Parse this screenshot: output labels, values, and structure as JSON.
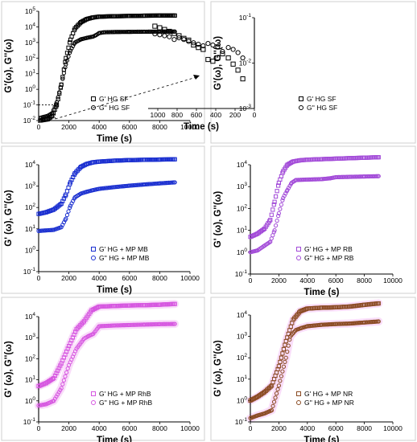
{
  "chart_data": [
    {
      "id": "sf",
      "type": "scatter",
      "xlabel": "Time (s)",
      "ylabel": "G'(ω), G''(ω)",
      "xticks": [
        "0",
        "2000",
        "4000",
        "6000",
        "8000",
        "10000"
      ],
      "xlim": [
        0,
        10000
      ],
      "yscale": "log",
      "ylim_exp": [
        -2,
        5
      ],
      "series": [
        {
          "name": "G' HG SF",
          "marker": "square",
          "color": "#000000",
          "x": [
            100,
            600,
            900,
            1200,
            1500,
            1800,
            2100,
            2400,
            2800,
            3200,
            3600,
            4000,
            5000,
            6000,
            7000,
            8000,
            9000
          ],
          "y": [
            0.01,
            0.012,
            0.02,
            0.1,
            2,
            100,
            1500,
            8000,
            20000,
            32000,
            40000,
            45000,
            48000,
            50000,
            52000,
            53000,
            53000
          ]
        },
        {
          "name": "G'' HG SF",
          "marker": "circle",
          "color": "#000000",
          "x": [
            100,
            600,
            900,
            1200,
            1500,
            1800,
            2100,
            2400,
            2800,
            3200,
            3600,
            3800,
            4000,
            4300,
            5000,
            6000,
            7000,
            8000,
            9000
          ],
          "y": [
            0.015,
            0.02,
            0.03,
            0.15,
            2,
            40,
            300,
            1000,
            1600,
            2000,
            2400,
            3000,
            4000,
            4500,
            4700,
            4800,
            4900,
            5000,
            5000
          ]
        }
      ]
    },
    {
      "id": "sf-zoom",
      "type": "scatter",
      "xlabel": "Time (s)",
      "ylabel": "G'(ω), G''(ω)",
      "xticks": [
        "0",
        "200",
        "400",
        "600",
        "800",
        "1000"
      ],
      "xlim": [
        0,
        1100
      ],
      "yscale": "log",
      "ylim_exp": [
        -3,
        -1
      ],
      "series": [
        {
          "name": "G' HG SF",
          "marker": "square",
          "color": "#000000",
          "x": [
            120,
            170,
            220,
            270,
            330,
            380,
            430,
            480,
            530,
            580,
            630,
            680,
            730,
            780,
            830,
            880,
            930,
            980,
            1030
          ],
          "y": [
            0.0045,
            0.007,
            0.0095,
            0.013,
            0.016,
            0.013,
            0.011,
            0.012,
            0.02,
            0.022,
            0.025,
            0.032,
            0.035,
            0.04,
            0.045,
            0.05,
            0.055,
            0.06,
            0.065
          ]
        },
        {
          "name": "G'' HG SF",
          "marker": "circle",
          "color": "#000000",
          "x": [
            120,
            170,
            220,
            270,
            330,
            380,
            430,
            480,
            530,
            580,
            630,
            680,
            730,
            780,
            830,
            880,
            930,
            980,
            1030
          ],
          "y": [
            0.013,
            0.017,
            0.02,
            0.022,
            0.018,
            0.023,
            0.025,
            0.027,
            0.024,
            0.026,
            0.028,
            0.03,
            0.033,
            0.036,
            0.033,
            0.038,
            0.04,
            0.042,
            0.044
          ]
        }
      ]
    },
    {
      "id": "mb",
      "type": "scatter",
      "xlabel": "Time (s)",
      "ylabel": "G' (ω), G''(ω)",
      "xticks": [
        "0",
        "2000",
        "4000",
        "6000",
        "8000",
        "10000"
      ],
      "xlim": [
        0,
        10000
      ],
      "yscale": "log",
      "ylim_exp": [
        -1,
        4
      ],
      "series": [
        {
          "name": "G' HG + MP MB",
          "marker": "square",
          "color": "#1a2fd0",
          "x": [
            0,
            500,
            1000,
            1500,
            1800,
            2100,
            2400,
            2800,
            3200,
            3600,
            4000,
            5000,
            6000,
            7000,
            8000,
            9000
          ],
          "y": [
            50,
            60,
            80,
            150,
            400,
            1500,
            4000,
            8000,
            11000,
            13000,
            14000,
            15500,
            16500,
            17000,
            17500,
            18000
          ]
        },
        {
          "name": "G'' HG + MP MB",
          "marker": "circle",
          "color": "#1a2fd0",
          "x": [
            0,
            500,
            1000,
            1500,
            1800,
            2100,
            2400,
            2800,
            3200,
            3600,
            4000,
            5000,
            6000,
            7000,
            8000,
            9000
          ],
          "y": [
            8,
            8.5,
            9,
            12,
            30,
            120,
            300,
            450,
            550,
            650,
            750,
            900,
            1050,
            1200,
            1350,
            1500
          ]
        }
      ]
    },
    {
      "id": "rb",
      "type": "scatter",
      "xlabel": "Time (s)",
      "ylabel": "G' (ω), G''(ω)",
      "xticks": [
        "0",
        "2000",
        "4000",
        "6000",
        "8000",
        "10000"
      ],
      "xlim": [
        0,
        10000
      ],
      "yscale": "log",
      "ylim_exp": [
        -1,
        4
      ],
      "series": [
        {
          "name": "G' HG + MP RB",
          "marker": "square",
          "color": "#a24ad8",
          "x": [
            0,
            500,
            1000,
            1400,
            1700,
            2000,
            2300,
            2600,
            3000,
            3500,
            4000,
            5000,
            6000,
            7000,
            8000,
            9000
          ],
          "y": [
            5,
            7,
            12,
            30,
            200,
            1500,
            5000,
            10000,
            14000,
            16000,
            17000,
            18000,
            19000,
            20000,
            21000,
            22000
          ]
        },
        {
          "name": "G'' HG + MP RB",
          "marker": "circle",
          "color": "#a24ad8",
          "x": [
            0,
            500,
            1000,
            1400,
            1700,
            2000,
            2300,
            2600,
            2900,
            3200,
            4000,
            5000,
            5600,
            6000,
            7000,
            8000,
            9000
          ],
          "y": [
            1,
            1.2,
            2,
            3,
            10,
            60,
            300,
            700,
            1500,
            2000,
            2100,
            2200,
            2400,
            2700,
            2800,
            2900,
            3000
          ]
        }
      ]
    },
    {
      "id": "rhb",
      "type": "scatter",
      "xlabel": "Time (s)",
      "ylabel": "G' (ω), G''(ω)",
      "xticks": [
        "0",
        "2000",
        "4000",
        "6000",
        "8000",
        "10000"
      ],
      "xlim": [
        0,
        10000
      ],
      "yscale": "log",
      "ylim_exp": [
        -1,
        4
      ],
      "series": [
        {
          "name": "G' HG + MP RhB",
          "marker": "square",
          "color": "#d656e0",
          "x": [
            0,
            500,
            1000,
            1500,
            2000,
            2500,
            3000,
            3500,
            4000,
            5000,
            6000,
            7000,
            8000,
            9000
          ],
          "y": [
            5,
            7,
            12,
            60,
            400,
            2500,
            6000,
            20000,
            30000,
            32000,
            34000,
            35000,
            37000,
            40000
          ]
        },
        {
          "name": "G'' HG + MP RhB",
          "marker": "circle",
          "color": "#d656e0",
          "x": [
            0,
            500,
            1000,
            1500,
            2000,
            2500,
            3000,
            3300,
            3600,
            4000,
            5000,
            6000,
            7000,
            8000,
            9000
          ],
          "y": [
            0.6,
            0.7,
            1,
            4,
            50,
            300,
            900,
            1200,
            1500,
            3500,
            3800,
            4000,
            4200,
            4400,
            4500
          ]
        }
      ]
    },
    {
      "id": "nr",
      "type": "scatter",
      "xlabel": "Time (s)",
      "ylabel": "G' (ω), G''(ω)",
      "xticks": [
        "0",
        "2000",
        "4000",
        "6000",
        "8000",
        "10000"
      ],
      "xlim": [
        0,
        10000
      ],
      "yscale": "log",
      "ylim_exp": [
        -1,
        4
      ],
      "series": [
        {
          "name": "G' HG + MP NR",
          "marker": "square",
          "color": "#8a4a22",
          "x": [
            0,
            500,
            1000,
            1500,
            2000,
            2500,
            3000,
            3500,
            4000,
            5000,
            6000,
            7000,
            8000,
            9000
          ],
          "y": [
            1,
            1.5,
            2.5,
            5,
            40,
            600,
            6000,
            15000,
            20000,
            22000,
            23000,
            25000,
            30000,
            35000
          ]
        },
        {
          "name": "G'' HG + MP NR",
          "marker": "circle",
          "color": "#8a4a22",
          "x": [
            0,
            500,
            1000,
            1500,
            2000,
            2500,
            2800,
            3200,
            3600,
            4000,
            5000,
            6000,
            7000,
            8000,
            9000
          ],
          "y": [
            0.15,
            0.2,
            0.25,
            0.35,
            5,
            100,
            1000,
            2000,
            2500,
            3000,
            3500,
            3800,
            4000,
            4500,
            5000
          ]
        }
      ]
    }
  ]
}
